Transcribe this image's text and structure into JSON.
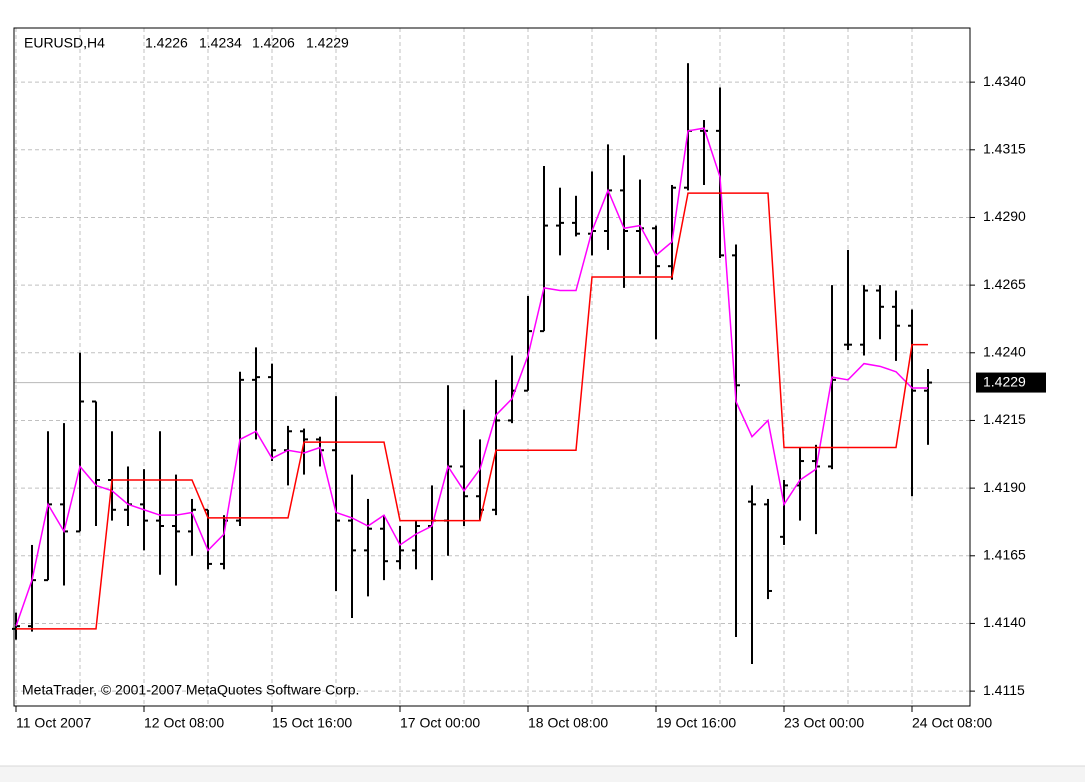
{
  "chart_data": {
    "type": "ohlc",
    "title": "EURUSD,H4",
    "annotation": "MetaTrader, © 2001-2007 MetaQuotes Software Corp.",
    "categories": [
      "11 Oct 2007",
      null,
      null,
      null,
      null,
      null,
      null,
      null,
      "12 Oct 08:00",
      null,
      null,
      null,
      null,
      null,
      null,
      null,
      "15 Oct 16:00",
      null,
      null,
      null,
      null,
      null,
      null,
      null,
      "17 Oct 00:00",
      null,
      null,
      null,
      null,
      null,
      null,
      null,
      "18 Oct 08:00",
      null,
      null,
      null,
      null,
      null,
      null,
      null,
      "19 Oct 16:00",
      null,
      null,
      null,
      null,
      null,
      null,
      null,
      "23 Oct 00:00",
      null,
      null,
      null,
      null,
      null,
      null,
      null,
      "24 Oct 08:00",
      null
    ],
    "open": [
      1.4138,
      1.4139,
      1.4156,
      1.4184,
      1.4174,
      1.4222,
      1.4193,
      1.4182,
      1.4184,
      1.4178,
      1.4176,
      1.4174,
      1.4182,
      1.4162,
      1.4178,
      1.423,
      1.4231,
      1.4204,
      1.4211,
      1.4208,
      1.4204,
      1.4178,
      1.4167,
      1.4175,
      1.4163,
      1.4167,
      1.4176,
      1.4178,
      1.4198,
      1.4187,
      1.4182,
      1.4215,
      1.4226,
      1.4248,
      1.4287,
      1.4288,
      1.4284,
      1.4285,
      1.43,
      1.4285,
      1.4286,
      1.4272,
      1.4301,
      1.4322,
      1.4322,
      1.4276,
      1.4185,
      1.4184,
      1.4172,
      1.4191,
      1.42,
      1.4198,
      1.4243,
      1.4243,
      1.4263,
      1.4257,
      1.425,
      1.4226
    ],
    "high": [
      1.4144,
      1.4169,
      1.4211,
      1.4214,
      1.424,
      1.4222,
      1.4211,
      1.4198,
      1.4197,
      1.4211,
      1.4195,
      1.4186,
      1.4182,
      1.418,
      1.4233,
      1.4242,
      1.4236,
      1.4213,
      1.4212,
      1.4209,
      1.4224,
      1.4195,
      1.4186,
      1.418,
      1.4176,
      1.4178,
      1.4191,
      1.4228,
      1.4219,
      1.4208,
      1.423,
      1.4239,
      1.4261,
      1.4309,
      1.4301,
      1.4298,
      1.4307,
      1.4317,
      1.4313,
      1.4304,
      1.4287,
      1.4302,
      1.4347,
      1.4326,
      1.4338,
      1.428,
      1.4191,
      1.4186,
      1.4193,
      1.4205,
      1.4206,
      1.4265,
      1.4278,
      1.4265,
      1.4265,
      1.4263,
      1.4256,
      1.4234
    ],
    "low": [
      1.4134,
      1.4137,
      1.4156,
      1.4154,
      1.4174,
      1.4176,
      1.4178,
      1.4176,
      1.4167,
      1.4158,
      1.4154,
      1.4165,
      1.416,
      1.416,
      1.4176,
      1.4208,
      1.42,
      1.4191,
      1.4195,
      1.4198,
      1.4152,
      1.4142,
      1.415,
      1.4156,
      1.416,
      1.416,
      1.4156,
      1.4165,
      1.4176,
      1.4178,
      1.418,
      1.4214,
      1.4226,
      1.4248,
      1.4276,
      1.4283,
      1.4276,
      1.4278,
      1.4264,
      1.4269,
      1.4245,
      1.4267,
      1.43,
      1.4302,
      1.4275,
      1.4135,
      1.4125,
      1.4149,
      1.4169,
      1.4178,
      1.4173,
      1.4197,
      1.4241,
      1.4239,
      1.4245,
      1.4237,
      1.4187,
      1.4206
    ],
    "close": [
      1.4139,
      1.4156,
      1.4184,
      1.4174,
      1.4222,
      1.4193,
      1.4182,
      1.4184,
      1.4178,
      1.4176,
      1.4174,
      1.4182,
      1.4162,
      1.4178,
      1.423,
      1.4231,
      1.4204,
      1.4211,
      1.4208,
      1.4204,
      1.4178,
      1.4167,
      1.4175,
      1.4163,
      1.4167,
      1.4176,
      1.4178,
      1.4198,
      1.4187,
      1.4182,
      1.4215,
      1.4226,
      1.4248,
      1.4287,
      1.4288,
      1.4284,
      1.4285,
      1.43,
      1.4285,
      1.4286,
      1.4272,
      1.4301,
      1.4322,
      1.4322,
      1.4276,
      1.4228,
      1.4184,
      1.4152,
      1.4191,
      1.42,
      1.4198,
      1.423,
      1.4243,
      1.4263,
      1.4257,
      1.425,
      1.4226,
      1.4229
    ],
    "color": "#000000",
    "series": [
      {
        "color": "#ff00ff",
        "values": [
          1.4139,
          1.4156,
          1.4184,
          1.4174,
          1.4198,
          1.4191,
          1.4189,
          1.4184,
          1.4182,
          1.418,
          1.418,
          1.4181,
          1.4167,
          1.4173,
          1.4208,
          1.4211,
          1.4201,
          1.4204,
          1.4203,
          1.4205,
          1.4181,
          1.4179,
          1.4176,
          1.418,
          1.4169,
          1.4173,
          1.4176,
          1.4198,
          1.4189,
          1.4197,
          1.4217,
          1.4223,
          1.4239,
          1.4264,
          1.4263,
          1.4263,
          1.4285,
          1.43,
          1.4286,
          1.4287,
          1.4276,
          1.4281,
          1.4322,
          1.4323,
          1.4305,
          1.4222,
          1.4209,
          1.4215,
          1.4184,
          1.4193,
          1.4197,
          1.4231,
          1.423,
          1.4236,
          1.4235,
          1.4233,
          1.4227,
          1.4227
        ]
      },
      {
        "color": "#ff0000",
        "values": [
          1.4138,
          1.4138,
          1.4138,
          1.4138,
          1.4138,
          1.4138,
          1.4193,
          1.4193,
          1.4193,
          1.4193,
          1.4193,
          1.4193,
          1.4179,
          1.4179,
          1.4179,
          1.4179,
          1.4179,
          1.4179,
          1.4207,
          1.4207,
          1.4207,
          1.4207,
          1.4207,
          1.4207,
          1.4178,
          1.4178,
          1.4178,
          1.4178,
          1.4178,
          1.4178,
          1.4204,
          1.4204,
          1.4204,
          1.4204,
          1.4204,
          1.4204,
          1.4268,
          1.4268,
          1.4268,
          1.4268,
          1.4268,
          1.4268,
          1.4299,
          1.4299,
          1.4299,
          1.4299,
          1.4299,
          1.4299,
          1.4205,
          1.4205,
          1.4205,
          1.4205,
          1.4205,
          1.4205,
          1.4205,
          1.4205,
          1.4243,
          1.4243
        ]
      }
    ],
    "current_price": 1.4229,
    "ylim": [
      1.41095,
      1.436
    ],
    "yticks": [
      1.4115,
      {
        "value": 1.414,
        "label": "1.4140"
      },
      1.4165,
      {
        "value": 1.419,
        "label": "1.4190"
      },
      1.4215,
      {
        "value": 1.424,
        "label": "1.4240"
      },
      1.4265,
      {
        "value": 1.429,
        "label": "1.4290"
      },
      1.4315,
      {
        "value": 1.434,
        "label": "1.4340"
      }
    ],
    "grid": true
  }
}
